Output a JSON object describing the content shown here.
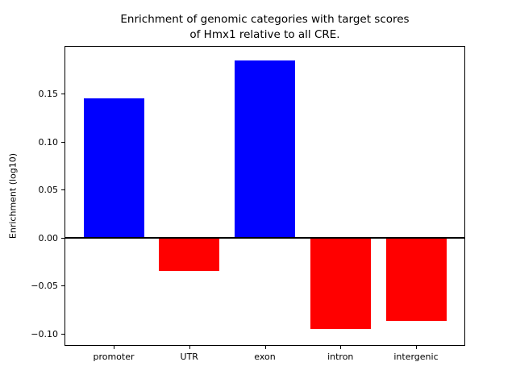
{
  "figure": {
    "title_line1": "Enrichment of genomic categories with target scores",
    "title_line2": "of Hmx1 relative to all CRE."
  },
  "chart_data": {
    "type": "bar",
    "title": "Enrichment of genomic categories with target scores\nof Hmx1 relative to all CRE.",
    "xlabel": "",
    "ylabel": "Enrichment (log10)",
    "categories": [
      "promoter",
      "UTR",
      "exon",
      "intron",
      "intergenic"
    ],
    "values": [
      0.145,
      -0.035,
      0.185,
      -0.095,
      -0.087
    ],
    "bar_colors": [
      "#0000ff",
      "#ff0000",
      "#0000ff",
      "#ff0000",
      "#ff0000"
    ],
    "positive_color": "#0000ff",
    "negative_color": "#ff0000",
    "ylim": [
      -0.112,
      0.199
    ],
    "xlim": [
      -0.64,
      4.64
    ],
    "bar_width": 0.8,
    "yticks": [
      -0.1,
      -0.05,
      0.0,
      0.05,
      0.1,
      0.15
    ],
    "ytick_labels": [
      "−0.10",
      "−0.05",
      "0.00",
      "0.05",
      "0.10",
      "0.15"
    ],
    "grid": false,
    "legend": null,
    "zero_line": true
  }
}
